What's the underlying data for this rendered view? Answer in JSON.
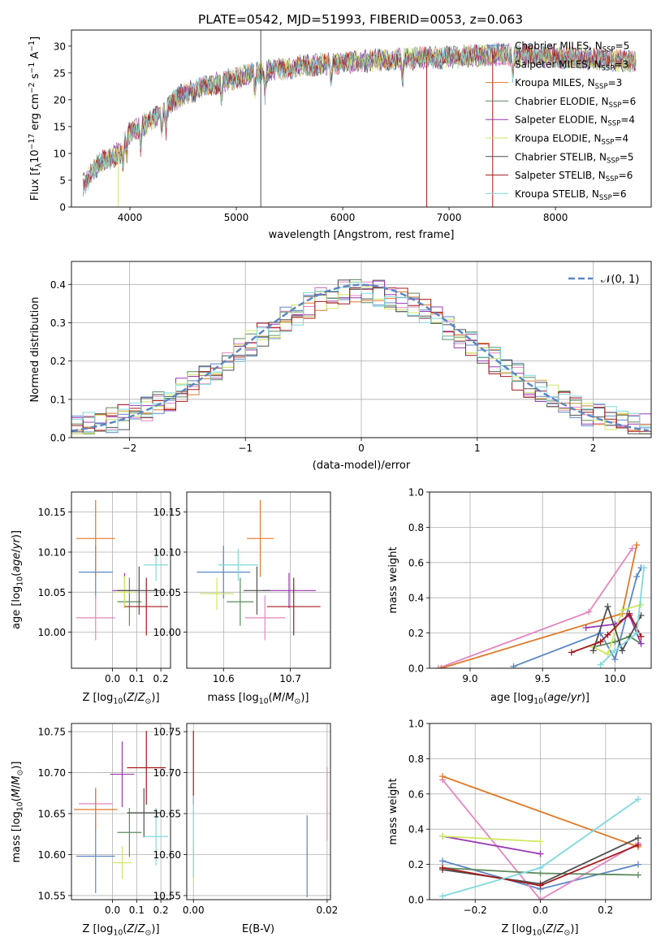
{
  "title": "PLATE=0542, MJD=51993, FIBERID=0053, z=0.063",
  "colors": {
    "Chabrier MILES": "#5b87c4",
    "Salpeter MILES": "#e386c2",
    "Kroupa MILES": "#df7a28",
    "Chabrier ELODIE": "#5c8a5c",
    "Salpeter ELODIE": "#9a38b3",
    "Kroupa ELODIE": "#cde862",
    "Chabrier STELIB": "#505050",
    "Salpeter STELIB": "#a5191c",
    "Kroupa STELIB": "#7fd8dc"
  },
  "chart_data": [
    {
      "id": "spectrum",
      "type": "line",
      "xlabel": "wavelength [Angstrom, rest frame]",
      "ylabel": "Flux [f_λ 10^-17 erg cm^-2 s^-1 A^-1]",
      "xlim": [
        3450,
        8900
      ],
      "ylim": [
        0,
        33
      ],
      "xticks": [
        "4000",
        "5000",
        "6000",
        "7000",
        "8000"
      ],
      "yticks": [
        "0",
        "5",
        "10",
        "15",
        "20",
        "25",
        "30"
      ],
      "grid": false,
      "legend": "right",
      "approx_continuum": [
        [
          3560,
          4
        ],
        [
          3700,
          8
        ],
        [
          3900,
          10
        ],
        [
          4000,
          14
        ],
        [
          4200,
          16
        ],
        [
          4300,
          18
        ],
        [
          4500,
          21
        ],
        [
          4800,
          23
        ],
        [
          5200,
          25
        ],
        [
          5500,
          26
        ],
        [
          6000,
          27
        ],
        [
          6500,
          27.5
        ],
        [
          7000,
          28
        ],
        [
          7500,
          28.5
        ],
        [
          8000,
          28
        ],
        [
          8500,
          27.5
        ],
        [
          8760,
          27
        ]
      ],
      "series": [
        {
          "name": "Chabrier MILES",
          "sub": "SSP",
          "n": "5"
        },
        {
          "name": "Salpeter MILES",
          "sub": "SSP",
          "n": "3"
        },
        {
          "name": "Kroupa MILES",
          "sub": "SSP",
          "n": "3"
        },
        {
          "name": "Chabrier ELODIE",
          "sub": "SSP",
          "n": "6"
        },
        {
          "name": "Salpeter ELODIE",
          "sub": "SSP",
          "n": "4"
        },
        {
          "name": "Kroupa ELODIE",
          "sub": "SSP",
          "n": "4"
        },
        {
          "name": "Chabrier STELIB",
          "sub": "SSP",
          "n": "5"
        },
        {
          "name": "Salpeter STELIB",
          "sub": "SSP",
          "n": "6"
        },
        {
          "name": "Kroupa STELIB",
          "sub": "SSP",
          "n": "6"
        }
      ]
    },
    {
      "id": "residuals",
      "type": "histogram",
      "xlabel": "(data-model)/error",
      "ylabel": "Normed distribution",
      "xlim": [
        -2.5,
        2.5
      ],
      "ylim": [
        0,
        0.46
      ],
      "xticks": [
        "−2",
        "−1",
        "0",
        "1",
        "2"
      ],
      "yticks": [
        "0.0",
        "0.1",
        "0.2",
        "0.3",
        "0.4"
      ],
      "grid": true,
      "legend": "top-right",
      "legend_label": "N(0,1)",
      "bin_width": 0.1,
      "reference_curve": "normal pdf, mean 0, sigma 1"
    },
    {
      "id": "age-vs-Z",
      "type": "scatter",
      "xlabel": "Z [log10(Z/Z⊙)]",
      "ylabel": "age [log10(age/yr)]",
      "xlim": [
        -0.17,
        0.24
      ],
      "ylim": [
        9.955,
        10.175
      ],
      "xticks": [
        "0.0",
        "0.1",
        "0.2"
      ],
      "yticks": [
        "10.00",
        "10.05",
        "10.10",
        "10.15"
      ],
      "grid": true,
      "points": [
        {
          "series": "Chabrier MILES",
          "x": -0.07,
          "y": 10.075,
          "xerr": 0.07,
          "yerr": 0.033
        },
        {
          "series": "Salpeter MILES",
          "x": -0.07,
          "y": 10.018,
          "xerr": 0.08,
          "yerr": 0.028
        },
        {
          "series": "Kroupa MILES",
          "x": -0.07,
          "y": 10.117,
          "xerr": 0.08,
          "yerr": 0.048
        },
        {
          "series": "Chabrier ELODIE",
          "x": 0.07,
          "y": 10.038,
          "xerr": 0.05,
          "yerr": 0.03
        },
        {
          "series": "Salpeter ELODIE",
          "x": 0.05,
          "y": 10.052,
          "xerr": 0.05,
          "yerr": 0.022
        },
        {
          "series": "Kroupa ELODIE",
          "x": 0.05,
          "y": 10.05,
          "xerr": 0.04,
          "yerr": 0.02
        },
        {
          "series": "Chabrier STELIB",
          "x": 0.11,
          "y": 10.052,
          "xerr": 0.09,
          "yerr": 0.03
        },
        {
          "series": "Salpeter STELIB",
          "x": 0.14,
          "y": 10.032,
          "xerr": 0.09,
          "yerr": 0.036
        },
        {
          "series": "Kroupa STELIB",
          "x": 0.18,
          "y": 10.084,
          "xerr": 0.05,
          "yerr": 0.02
        }
      ]
    },
    {
      "id": "age-vs-mass",
      "type": "scatter",
      "xlabel": "mass [log10(M/M⊙)]",
      "ylabel": "",
      "xlim": [
        10.545,
        10.76
      ],
      "ylim": [
        9.955,
        10.175
      ],
      "xticks": [
        "10.6",
        "10.7"
      ],
      "yticks": [
        "10.00",
        "10.05",
        "10.10",
        "10.15"
      ],
      "grid": true,
      "points": [
        {
          "series": "Chabrier MILES",
          "x": 10.6,
          "y": 10.075,
          "xerr": 0.04,
          "yerr": 0.033
        },
        {
          "series": "Salpeter MILES",
          "x": 10.662,
          "y": 10.018,
          "xerr": 0.03,
          "yerr": 0.028
        },
        {
          "series": "Kroupa MILES",
          "x": 10.655,
          "y": 10.117,
          "xerr": 0.02,
          "yerr": 0.048
        },
        {
          "series": "Chabrier ELODIE",
          "x": 10.625,
          "y": 10.038,
          "xerr": 0.02,
          "yerr": 0.03
        },
        {
          "series": "Salpeter ELODIE",
          "x": 10.698,
          "y": 10.052,
          "xerr": 0.04,
          "yerr": 0.022
        },
        {
          "series": "Kroupa ELODIE",
          "x": 10.59,
          "y": 10.048,
          "xerr": 0.025,
          "yerr": 0.02
        },
        {
          "series": "Chabrier STELIB",
          "x": 10.65,
          "y": 10.052,
          "xerr": 0.02,
          "yerr": 0.03
        },
        {
          "series": "Salpeter STELIB",
          "x": 10.705,
          "y": 10.032,
          "xerr": 0.04,
          "yerr": 0.036
        },
        {
          "series": "Kroupa STELIB",
          "x": 10.622,
          "y": 10.084,
          "xerr": 0.03,
          "yerr": 0.02
        }
      ]
    },
    {
      "id": "weight-vs-age",
      "type": "line",
      "xlabel": "age [log10(age/yr)]",
      "ylabel": "mass weight",
      "xlim": [
        8.72,
        10.25
      ],
      "ylim": [
        0,
        1.0
      ],
      "xticks": [
        "9.0",
        "9.5",
        "10.0"
      ],
      "yticks": [
        "0.0",
        "0.2",
        "0.4",
        "0.6",
        "0.8",
        "1.0"
      ],
      "grid": true,
      "series": [
        {
          "name": "Chabrier MILES",
          "points": [
            [
              9.3,
              0.01
            ],
            [
              9.9,
              0.2
            ],
            [
              10.0,
              0.05
            ],
            [
              10.15,
              0.52
            ],
            [
              10.18,
              0.57
            ]
          ]
        },
        {
          "name": "Salpeter MILES",
          "points": [
            [
              8.78,
              0.0
            ],
            [
              9.82,
              0.32
            ],
            [
              10.12,
              0.68
            ]
          ]
        },
        {
          "name": "Kroupa MILES",
          "points": [
            [
              8.8,
              0.0
            ],
            [
              10.05,
              0.31
            ],
            [
              10.15,
              0.7
            ]
          ]
        },
        {
          "name": "Chabrier ELODIE",
          "points": [
            [
              9.85,
              0.12
            ],
            [
              10.0,
              0.15
            ],
            [
              10.1,
              0.18
            ],
            [
              10.18,
              0.14
            ]
          ]
        },
        {
          "name": "Salpeter ELODIE",
          "points": [
            [
              9.8,
              0.23
            ],
            [
              10.0,
              0.25
            ],
            [
              10.1,
              0.3
            ],
            [
              10.18,
              0.14
            ]
          ]
        },
        {
          "name": "Kroupa ELODIE",
          "points": [
            [
              9.85,
              0.12
            ],
            [
              9.95,
              0.08
            ],
            [
              10.05,
              0.33
            ],
            [
              10.18,
              0.36
            ]
          ]
        },
        {
          "name": "Chabrier STELIB",
          "points": [
            [
              9.85,
              0.1
            ],
            [
              9.95,
              0.35
            ],
            [
              10.05,
              0.1
            ],
            [
              10.18,
              0.3
            ]
          ]
        },
        {
          "name": "Salpeter STELIB",
          "points": [
            [
              9.7,
              0.09
            ],
            [
              9.9,
              0.15
            ],
            [
              9.95,
              0.19
            ],
            [
              10.1,
              0.31
            ],
            [
              10.18,
              0.18
            ]
          ]
        },
        {
          "name": "Kroupa STELIB",
          "points": [
            [
              9.9,
              0.02
            ],
            [
              10.0,
              0.1
            ],
            [
              10.15,
              0.2
            ],
            [
              10.2,
              0.57
            ]
          ]
        }
      ]
    },
    {
      "id": "mass-vs-Z",
      "type": "scatter",
      "xlabel": "Z [log10(Z/Z⊙)]",
      "ylabel": "mass [log10(M/M⊙)]",
      "xlim": [
        -0.17,
        0.24
      ],
      "ylim": [
        10.545,
        10.76
      ],
      "xticks": [
        "0.0",
        "0.1",
        "0.2"
      ],
      "yticks": [
        "10.55",
        "10.60",
        "10.65",
        "10.70",
        "10.75"
      ],
      "grid": true,
      "points": [
        {
          "series": "Chabrier MILES",
          "x": -0.07,
          "y": 10.598,
          "xerr": 0.08,
          "yerr": 0.045
        },
        {
          "series": "Salpeter MILES",
          "x": -0.07,
          "y": 10.662,
          "xerr": 0.07,
          "yerr": 0.02
        },
        {
          "series": "Kroupa MILES",
          "x": -0.07,
          "y": 10.655,
          "xerr": 0.09,
          "yerr": 0.025
        },
        {
          "series": "Chabrier ELODIE",
          "x": 0.07,
          "y": 10.627,
          "xerr": 0.05,
          "yerr": 0.03
        },
        {
          "series": "Salpeter ELODIE",
          "x": 0.04,
          "y": 10.698,
          "xerr": 0.05,
          "yerr": 0.04
        },
        {
          "series": "Kroupa ELODIE",
          "x": 0.04,
          "y": 10.59,
          "xerr": 0.04,
          "yerr": 0.02
        },
        {
          "series": "Chabrier STELIB",
          "x": 0.13,
          "y": 10.651,
          "xerr": 0.07,
          "yerr": 0.03
        },
        {
          "series": "Salpeter STELIB",
          "x": 0.14,
          "y": 10.706,
          "xerr": 0.08,
          "yerr": 0.045
        },
        {
          "series": "Kroupa STELIB",
          "x": 0.18,
          "y": 10.622,
          "xerr": 0.05,
          "yerr": 0.035
        }
      ]
    },
    {
      "id": "mass-vs-EBV",
      "type": "scatter",
      "xlabel": "E(B-V)",
      "ylabel": "",
      "xlim": [
        -0.001,
        0.0205
      ],
      "ylim": [
        10.545,
        10.76
      ],
      "xticks": [
        "0.00",
        "0.02"
      ],
      "yticks": [
        "10.55",
        "10.60",
        "10.65",
        "10.70",
        "10.75"
      ],
      "grid": true,
      "points": [
        {
          "series": "Chabrier MILES",
          "x": 0.017,
          "y": 10.598,
          "xerr": 0,
          "yerr": 0.05
        },
        {
          "series": "Salpeter MILES",
          "x": 0.02,
          "y": 10.662,
          "xerr": 0,
          "yerr": 0.045
        },
        {
          "series": "Kroupa ELODIE",
          "x": 0.0,
          "y": 10.59,
          "xerr": 0,
          "yerr": 0.025
        },
        {
          "series": "Salpeter STELIB",
          "x": 0.0,
          "y": 10.706,
          "xerr": 0,
          "yerr": 0.045
        },
        {
          "series": "Kroupa STELIB",
          "x": 0.0,
          "y": 10.622,
          "xerr": 0,
          "yerr": 0.05
        }
      ]
    },
    {
      "id": "weight-vs-Z",
      "type": "line",
      "xlabel": "Z [log10(Z/Z⊙)]",
      "ylabel": "mass weight",
      "xlim": [
        -0.34,
        0.34
      ],
      "ylim": [
        0,
        1.0
      ],
      "xticks": [
        "−0.2",
        "0.0",
        "0.2"
      ],
      "yticks": [
        "0.0",
        "0.2",
        "0.4",
        "0.6",
        "0.8",
        "1.0"
      ],
      "grid": true,
      "series": [
        {
          "name": "Chabrier MILES",
          "points": [
            [
              -0.3,
              0.22
            ],
            [
              0.0,
              0.06
            ],
            [
              0.3,
              0.2
            ]
          ]
        },
        {
          "name": "Salpeter MILES",
          "points": [
            [
              -0.3,
              0.68
            ],
            [
              0.0,
              0.0
            ],
            [
              0.3,
              0.32
            ]
          ]
        },
        {
          "name": "Kroupa MILES",
          "points": [
            [
              -0.3,
              0.7
            ],
            [
              0.3,
              0.3
            ]
          ]
        },
        {
          "name": "Chabrier ELODIE",
          "points": [
            [
              -0.3,
              0.18
            ],
            [
              0.0,
              0.15
            ],
            [
              0.3,
              0.14
            ]
          ]
        },
        {
          "name": "Salpeter ELODIE",
          "points": [
            [
              -0.3,
              0.36
            ],
            [
              0.0,
              0.26
            ]
          ]
        },
        {
          "name": "Kroupa ELODIE",
          "points": [
            [
              -0.3,
              0.36
            ],
            [
              0.0,
              0.33
            ]
          ]
        },
        {
          "name": "Chabrier STELIB",
          "points": [
            [
              -0.3,
              0.17
            ],
            [
              0.0,
              0.09
            ],
            [
              0.3,
              0.35
            ]
          ]
        },
        {
          "name": "Salpeter STELIB",
          "points": [
            [
              -0.3,
              0.18
            ],
            [
              0.0,
              0.08
            ],
            [
              0.3,
              0.31
            ]
          ]
        },
        {
          "name": "Kroupa STELIB",
          "points": [
            [
              -0.3,
              0.02
            ],
            [
              0.0,
              0.18
            ],
            [
              0.3,
              0.57
            ]
          ]
        }
      ]
    }
  ]
}
